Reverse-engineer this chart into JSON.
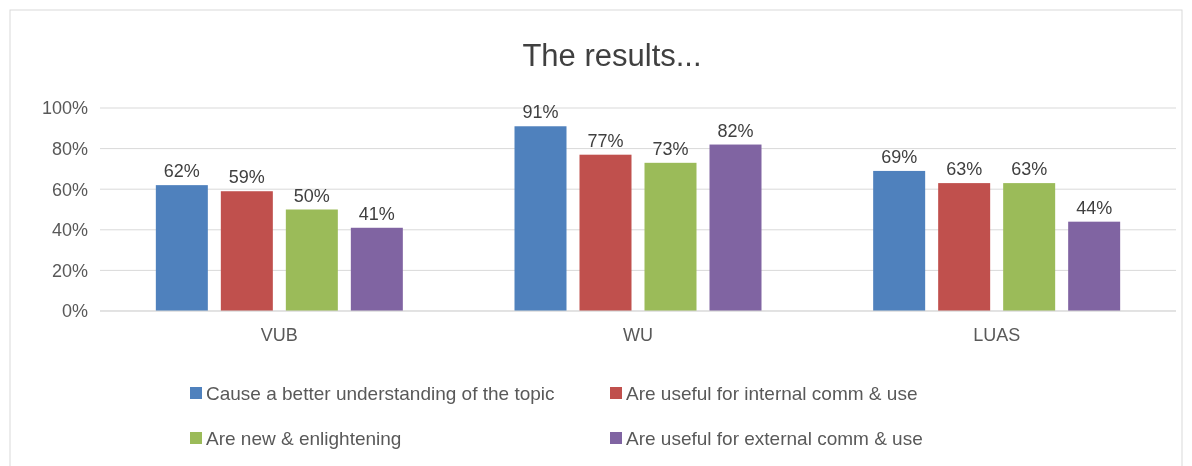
{
  "chart_data": {
    "type": "bar",
    "title": "The results...",
    "categories": [
      "VUB",
      "WU",
      "LUAS"
    ],
    "series": [
      {
        "name": "Cause a better understanding of the topic",
        "color": "#4f81bd",
        "values": [
          62,
          91,
          69
        ],
        "value_labels": [
          "62%",
          "91%",
          "69%"
        ]
      },
      {
        "name": "Are useful for internal comm & use",
        "color": "#c0504d",
        "values": [
          59,
          77,
          63
        ],
        "value_labels": [
          "59%",
          "77%",
          "63%"
        ]
      },
      {
        "name": "Are new & enlightening",
        "color": "#9bbb59",
        "values": [
          50,
          73,
          63
        ],
        "value_labels": [
          "50%",
          "73%",
          "63%"
        ]
      },
      {
        "name": "Are useful for external comm & use",
        "color": "#8064a2",
        "values": [
          41,
          82,
          44
        ],
        "value_labels": [
          "41%",
          "82%",
          "44%"
        ]
      }
    ],
    "ylim": [
      0,
      100
    ],
    "yticks": [
      {
        "value": 0,
        "label": "0%"
      },
      {
        "value": 20,
        "label": "20%"
      },
      {
        "value": 40,
        "label": "40%"
      },
      {
        "value": 60,
        "label": "60%"
      },
      {
        "value": 80,
        "label": "80%"
      },
      {
        "value": 100,
        "label": "100%"
      }
    ],
    "grid": "y",
    "legend": "bottom"
  }
}
